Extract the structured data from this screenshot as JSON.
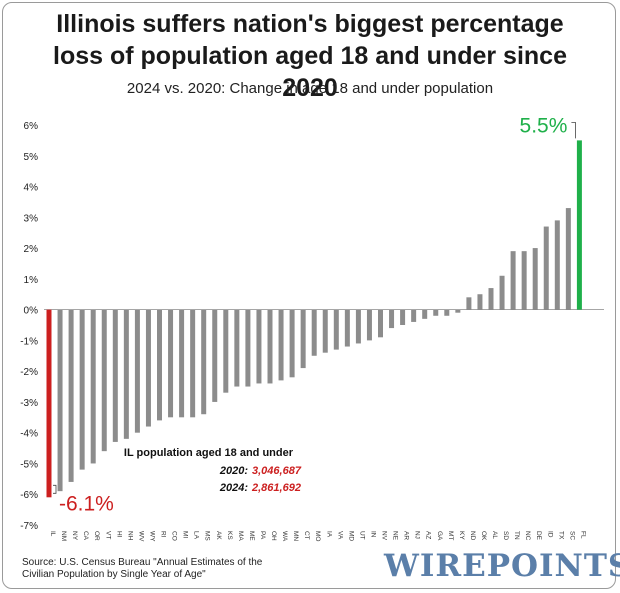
{
  "chart_data": {
    "type": "bar",
    "title": "Illinois suffers nation's biggest percentage loss of population aged 18 and under since 2020",
    "subtitle": "2024 vs. 2020: Change in age 18 and under population",
    "xlabel": "",
    "ylabel": "",
    "ylim": [
      -7,
      6
    ],
    "y_tick_labels": [
      "6%",
      "5%",
      "4%",
      "3%",
      "2%",
      "1%",
      "0%",
      "-1%",
      "-2%",
      "-3%",
      "-4%",
      "-5%",
      "-6%",
      "-7%"
    ],
    "grid": false,
    "categories": [
      "IL",
      "NM",
      "NY",
      "CA",
      "OR",
      "VT",
      "HI",
      "NH",
      "WV",
      "WY",
      "RI",
      "CO",
      "MI",
      "LA",
      "MS",
      "AK",
      "KS",
      "MA",
      "ME",
      "PA",
      "OH",
      "WA",
      "MN",
      "CT",
      "MO",
      "IA",
      "VA",
      "MD",
      "UT",
      "IN",
      "NV",
      "NE",
      "AR",
      "NJ",
      "AZ",
      "GA",
      "MT",
      "KY",
      "ND",
      "OK",
      "AL",
      "SD",
      "TN",
      "NC",
      "DE",
      "ID",
      "TX",
      "SC",
      "FL"
    ],
    "values": [
      -6.1,
      -5.9,
      -5.6,
      -5.2,
      -5.0,
      -4.6,
      -4.3,
      -4.2,
      -4.0,
      -3.8,
      -3.6,
      -3.5,
      -3.5,
      -3.5,
      -3.4,
      -3.0,
      -2.7,
      -2.5,
      -2.5,
      -2.4,
      -2.4,
      -2.3,
      -2.2,
      -1.9,
      -1.5,
      -1.4,
      -1.3,
      -1.2,
      -1.1,
      -1.0,
      -0.9,
      -0.6,
      -0.5,
      -0.4,
      -0.3,
      -0.2,
      -0.2,
      -0.1,
      0.4,
      0.5,
      0.7,
      1.1,
      1.9,
      1.9,
      2.0,
      2.7,
      2.9,
      3.3,
      5.5
    ],
    "highlight": {
      "IL": "#cc1f1f",
      "FL": "#1fb04a"
    },
    "bar_color": "#8c8c8c",
    "callouts": {
      "min_label": "-6.1%",
      "max_label": "5.5%"
    },
    "annotation": {
      "heading": "IL population aged 18 and under",
      "rows": [
        {
          "label": "2020:",
          "value": "3,046,687"
        },
        {
          "label": "2024:",
          "value": "2,861,692"
        }
      ],
      "value_color": "#cc1f1f"
    }
  },
  "footer": {
    "source_line1": "Source: U.S. Census Bureau \"Annual Estimates of the",
    "source_line2": "Civilian Population by Single Year of Age\"",
    "brand": "WIREPOINTS"
  },
  "colors": {
    "negative_highlight": "#cc1f1f",
    "positive_highlight": "#1fb04a",
    "bar": "#8c8c8c",
    "brand": "#5b7fa9"
  }
}
